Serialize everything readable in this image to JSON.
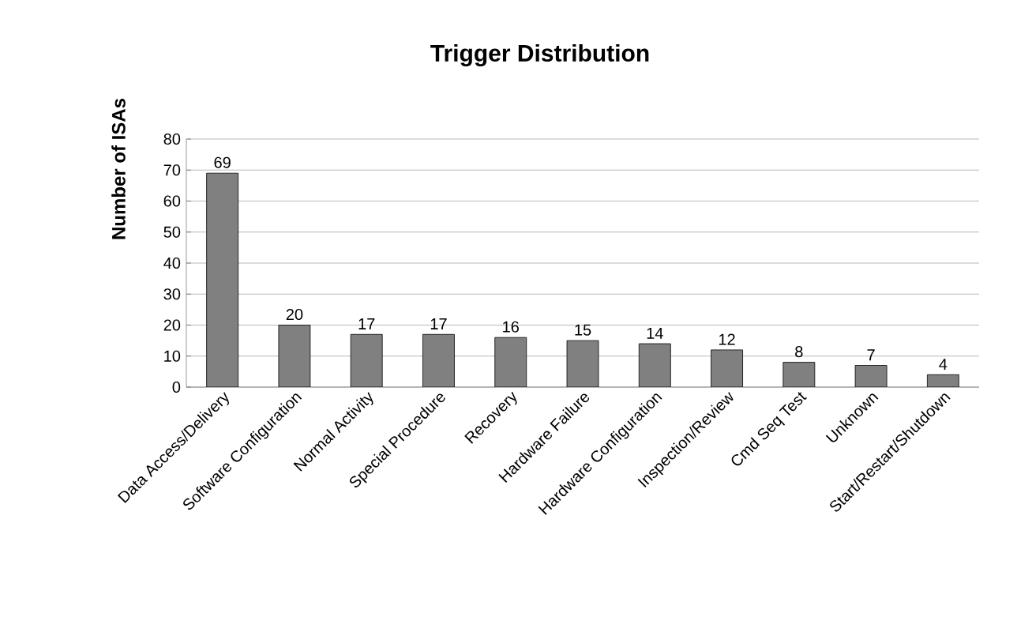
{
  "chart_data": {
    "type": "bar",
    "title": "Trigger Distribution",
    "ylabel": "Number of ISAs",
    "categories": [
      "Data Access/Delivery",
      "Software Configuration",
      "Normal Activity",
      "Special Procedure",
      "Recovery",
      "Hardware Failure",
      "Hardware Configuration",
      "Inspection/Review",
      "Cmd Seq Test",
      "Unknown",
      "Start/Restart/Shutdown"
    ],
    "values": [
      69,
      20,
      17,
      17,
      16,
      15,
      14,
      12,
      8,
      7,
      4
    ],
    "color": "#808080",
    "ylim": [
      0,
      80
    ],
    "yticks": [
      0,
      10,
      20,
      30,
      40,
      50,
      60,
      70,
      80
    ],
    "grid": "y",
    "data_labels": true
  }
}
